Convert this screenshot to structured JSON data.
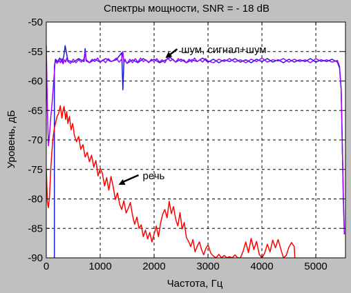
{
  "chart_data": {
    "type": "line",
    "title": "Спектры мощности, SNR = - 18 dB",
    "xlabel": "Частота, Гц",
    "ylabel": "Уровень, дБ",
    "xlim": [
      0,
      5550
    ],
    "ylim": [
      -90,
      -50
    ],
    "xticks": [
      0,
      1000,
      2000,
      3000,
      4000,
      5000
    ],
    "yticks": [
      -90,
      -85,
      -80,
      -75,
      -70,
      -65,
      -60,
      -55,
      -50
    ],
    "grid": true,
    "annotations": [
      {
        "text": "шум, сигнал+шум",
        "x": 2210,
        "y": -56.1
      },
      {
        "text": "речь",
        "x": 1340,
        "y": -77.6
      }
    ],
    "series": [
      {
        "color": "#1a1ad9",
        "x": [
          150,
          150,
          170,
          220,
          250,
          300,
          330,
          350,
          400,
          500,
          600,
          700,
          720,
          740,
          800,
          900,
          1000,
          1100,
          1200,
          1300,
          1400,
          1420,
          1440,
          1460,
          1480,
          1500,
          1600,
          1700,
          1800,
          1900,
          2000,
          2100,
          2200,
          2300,
          2400,
          2500,
          2600,
          2700,
          2800,
          2900,
          3000,
          3100,
          3200,
          3300,
          3400,
          3500,
          3600,
          3700,
          3800,
          3900,
          4000,
          4100,
          4200,
          4300,
          4400,
          4500,
          4600,
          4700,
          4800,
          4900,
          5000,
          5100,
          5200,
          5300,
          5400,
          5440,
          5470,
          5490,
          5510,
          5530
        ],
        "values": [
          -90,
          -57.5,
          -56.3,
          -56.8,
          -56.1,
          -56.9,
          -55.5,
          -54.0,
          -56.5,
          -56.8,
          -56.2,
          -56.7,
          -54.5,
          -56.4,
          -56.9,
          -56.3,
          -56.8,
          -56.2,
          -56.7,
          -56.4,
          -55.2,
          -61.5,
          -56.9,
          -56.3,
          -56.8,
          -57.0,
          -56.4,
          -56.9,
          -56.2,
          -56.8,
          -56.3,
          -56.9,
          -56.5,
          -56.0,
          -56.8,
          -56.3,
          -56.9,
          -56.4,
          -56.7,
          -56.1,
          -56.8,
          -56.3,
          -56.9,
          -56.4,
          -56.7,
          -56.2,
          -56.8,
          -56.4,
          -56.9,
          -56.3,
          -56.7,
          -56.2,
          -56.8,
          -56.4,
          -56.9,
          -56.3,
          -56.8,
          -56.4,
          -56.7,
          -56.2,
          -56.8,
          -56.4,
          -56.7,
          -56.3,
          -56.8,
          -57.8,
          -61.5,
          -70.5,
          -80.0,
          -86.0
        ]
      },
      {
        "color": "#ff0000",
        "x": [
          0,
          20,
          40,
          60,
          80,
          100,
          120,
          150,
          180,
          200,
          230,
          260,
          290,
          310,
          330,
          360,
          380,
          400,
          430,
          460,
          490,
          520,
          560,
          600,
          640,
          680,
          720,
          760,
          800,
          840,
          880,
          920,
          960,
          1000,
          1040,
          1080,
          1120,
          1160,
          1200,
          1240,
          1280,
          1320,
          1360,
          1400,
          1440,
          1480,
          1520,
          1560,
          1600,
          1640,
          1680,
          1720,
          1760,
          1800,
          1840,
          1880,
          1920,
          1960,
          2000,
          2040,
          2080,
          2120,
          2160,
          2200,
          2240,
          2280,
          2320,
          2360,
          2400,
          2440,
          2480,
          2520,
          2560,
          2600,
          2640,
          2680,
          2720,
          2760,
          2800,
          2840,
          2880,
          2920,
          2960,
          3000,
          3050,
          3100,
          3150,
          3200,
          3250,
          3300,
          3350,
          3400,
          3450,
          3500,
          3550,
          3600,
          3650,
          3700,
          3750,
          3800,
          3850,
          3900,
          3950,
          4000,
          4050,
          4100,
          4150,
          4200,
          4250,
          4300,
          4350,
          4400,
          4450,
          4500,
          4550,
          4600,
          4610
        ],
        "values": [
          -75,
          -80.5,
          -81.5,
          -79.5,
          -75.5,
          -72.5,
          -70.0,
          -68.0,
          -66.8,
          -66.0,
          -65.5,
          -64.2,
          -66.3,
          -65.0,
          -64.3,
          -66.5,
          -65.2,
          -67.2,
          -66.0,
          -68.3,
          -67.2,
          -69.2,
          -70.3,
          -69.4,
          -71.6,
          -70.8,
          -72.9,
          -72.1,
          -73.7,
          -72.6,
          -74.6,
          -73.5,
          -76.1,
          -74.8,
          -75.6,
          -77.8,
          -76.4,
          -78.5,
          -76.2,
          -77.9,
          -80.1,
          -79.0,
          -80.9,
          -81.8,
          -80.3,
          -82.4,
          -81.6,
          -80.6,
          -82.8,
          -84.3,
          -83.1,
          -85.0,
          -84.4,
          -86.4,
          -85.3,
          -86.8,
          -85.7,
          -87.3,
          -86.0,
          -84.6,
          -86.4,
          -84.1,
          -82.6,
          -81.8,
          -83.2,
          -80.4,
          -82.5,
          -81.3,
          -83.4,
          -84.6,
          -82.3,
          -85.1,
          -84.0,
          -86.6,
          -87.2,
          -88.1,
          -86.9,
          -89.0,
          -88.0,
          -87.3,
          -88.6,
          -89.5,
          -88.4,
          -87.8,
          -89.2,
          -89.7,
          -90.0,
          -89.4,
          -90.0,
          -89.6,
          -90.0,
          -89.8,
          -90.0,
          -89.5,
          -90.0,
          -90.0,
          -88.9,
          -87.3,
          -89.1,
          -86.7,
          -88.6,
          -87.2,
          -89.4,
          -90.0,
          -89.2,
          -87.7,
          -89.0,
          -87.0,
          -88.3,
          -86.9,
          -88.5,
          -90.0,
          -89.6,
          -88.2,
          -87.4,
          -88.1,
          -90.0
        ]
      },
      {
        "color": "#a000ff",
        "x": [
          0,
          20,
          40,
          60,
          80,
          110,
          130,
          150,
          160,
          180,
          200,
          230,
          260,
          290,
          310,
          340,
          360,
          380,
          400,
          450,
          500,
          550,
          600,
          650,
          700,
          720,
          740,
          800,
          850,
          900,
          950,
          1000,
          1050,
          1100,
          1150,
          1200,
          1250,
          1300,
          1350,
          1400,
          1420,
          1440,
          1460,
          1480,
          1500,
          1550,
          1600,
          1650,
          1700,
          1750,
          1800,
          1850,
          1900,
          1950,
          2000,
          2050,
          2100,
          2150,
          2200,
          2250,
          2300,
          2350,
          2400,
          2450,
          2500,
          2550,
          2600,
          2650,
          2700,
          2750,
          2800,
          2850,
          2900,
          2950,
          3000,
          3100,
          3200,
          3300,
          3400,
          3500,
          3600,
          3700,
          3800,
          3900,
          4000,
          4100,
          4200,
          4300,
          4400,
          4500,
          4600,
          4700,
          4800,
          4900,
          5000,
          5100,
          5200,
          5300,
          5400,
          5440,
          5470,
          5490,
          5510,
          5530
        ],
        "values": [
          -54,
          -65,
          -71,
          -69,
          -66.5,
          -63.5,
          -61.0,
          -58.5,
          -57.0,
          -56.6,
          -57.0,
          -56.3,
          -56.9,
          -56.2,
          -57.1,
          -56.4,
          -56.8,
          -56.1,
          -56.7,
          -57.0,
          -56.3,
          -56.9,
          -56.4,
          -56.8,
          -56.2,
          -55.0,
          -56.6,
          -56.9,
          -56.3,
          -56.7,
          -56.1,
          -56.8,
          -56.4,
          -56.9,
          -56.2,
          -56.7,
          -56.5,
          -56.1,
          -56.8,
          -56.3,
          -55.0,
          -56.9,
          -56.4,
          -56.8,
          -57.0,
          -56.3,
          -56.9,
          -56.2,
          -56.8,
          -56.1,
          -56.7,
          -56.4,
          -56.9,
          -56.3,
          -56.7,
          -56.2,
          -56.8,
          -56.4,
          -56.9,
          -56.1,
          -56.6,
          -56.3,
          -56.8,
          -56.2,
          -56.7,
          -56.4,
          -56.9,
          -56.3,
          -56.8,
          -56.1,
          -56.7,
          -56.4,
          -56.8,
          -56.2,
          -56.6,
          -56.9,
          -56.3,
          -56.7,
          -56.2,
          -56.8,
          -56.4,
          -56.9,
          -56.3,
          -56.7,
          -56.1,
          -56.8,
          -56.4,
          -56.6,
          -56.2,
          -56.8,
          -56.3,
          -56.7,
          -56.4,
          -56.9,
          -56.2,
          -56.7,
          -56.4,
          -56.8,
          -56.5,
          -57.5,
          -61.5,
          -70.0,
          -79.5,
          -86.0
        ]
      }
    ]
  }
}
